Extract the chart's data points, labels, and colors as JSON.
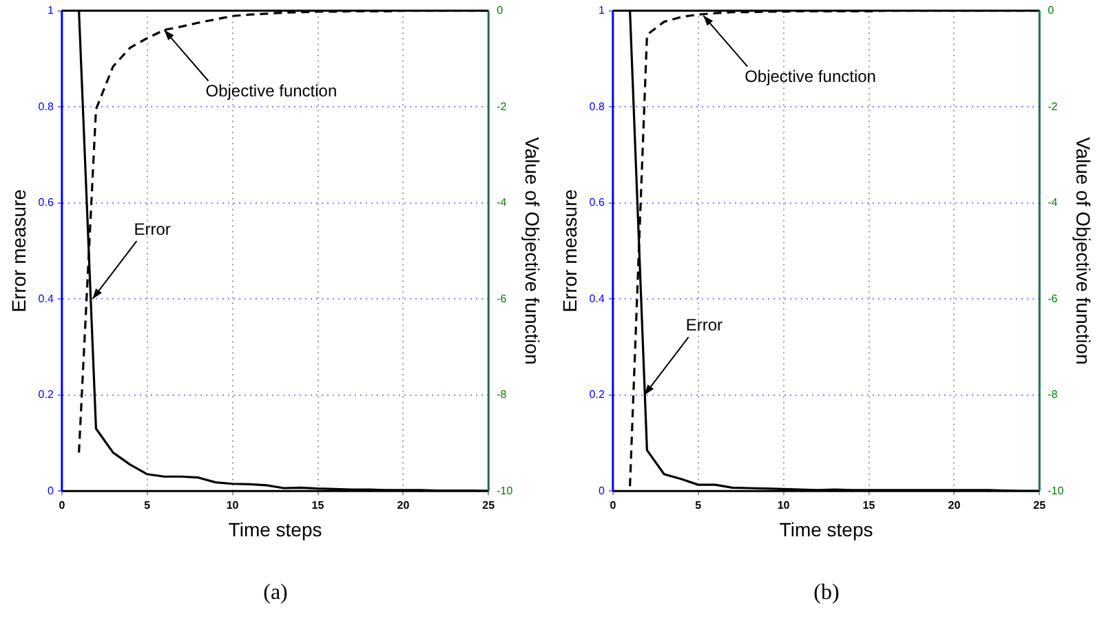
{
  "chart_data": [
    {
      "type": "line",
      "xlabel": "Time steps",
      "ylabel": "Error measure",
      "y2label": "Value of Objective function",
      "xlim": [
        0,
        25
      ],
      "xticks": [
        0,
        5,
        10,
        15,
        20,
        25
      ],
      "ylim": [
        0,
        1
      ],
      "yticks": [
        0,
        0.2,
        0.4,
        0.6,
        0.8,
        1
      ],
      "y2lim": [
        -10,
        0
      ],
      "y2ticks": [
        -10,
        -8,
        -6,
        -4,
        -2,
        0
      ],
      "grid": true,
      "legend": false,
      "x": [
        1,
        2,
        3,
        4,
        5,
        6,
        7,
        8,
        9,
        10,
        11,
        12,
        13,
        14,
        15,
        16,
        17,
        18,
        19,
        20,
        21,
        22,
        23,
        24,
        25
      ],
      "series": [
        {
          "color": "#000000",
          "line_style": "solid",
          "values": [
            1,
            0.13,
            0.08,
            0.055,
            0.035,
            0.03,
            0.03,
            0.028,
            0.018,
            0.015,
            0.014,
            0.012,
            0.006,
            0.007,
            0.005,
            0.004,
            0.003,
            0.003,
            0.002,
            0.002,
            0.002,
            0.001,
            0.001,
            0.001,
            0
          ]
        },
        {
          "color": "#000000",
          "line_style": "dashed",
          "axis": "y2",
          "values": [
            -9.2,
            -2.05,
            -1.16,
            -0.77,
            -0.57,
            -0.4,
            -0.33,
            -0.25,
            -0.18,
            -0.11,
            -0.08,
            -0.06,
            -0.04,
            -0.03,
            -0.02,
            -0.02,
            -0.01,
            -0.01,
            -0.01,
            0,
            0,
            0,
            0,
            0,
            0
          ]
        }
      ],
      "annotations": [
        {
          "text": "Error",
          "x": 1.8,
          "y": 0.4
        },
        {
          "text": "Objective function",
          "x": 6,
          "y": 0.96
        },
        "(a)"
      ]
    },
    {
      "type": "line",
      "xlabel": "Time steps",
      "ylabel": "Error measure",
      "y2label": "Value of Objective function",
      "xlim": [
        0,
        25
      ],
      "xticks": [
        0,
        5,
        10,
        15,
        20,
        25
      ],
      "ylim": [
        0,
        1
      ],
      "yticks": [
        0,
        0.2,
        0.4,
        0.6,
        0.8,
        1
      ],
      "y2lim": [
        -10,
        0
      ],
      "y2ticks": [
        -10,
        -8,
        -6,
        -4,
        -2,
        0
      ],
      "grid": true,
      "legend": false,
      "x": [
        1,
        2,
        3,
        4,
        5,
        6,
        7,
        8,
        9,
        10,
        11,
        12,
        13,
        14,
        15,
        16,
        17,
        18,
        19,
        20,
        21,
        22,
        23,
        24,
        25
      ],
      "series": [
        {
          "color": "#000000",
          "line_style": "solid",
          "values": [
            1,
            0.085,
            0.035,
            0.025,
            0.013,
            0.013,
            0.007,
            0.006,
            0.005,
            0.004,
            0.003,
            0.002,
            0.003,
            0.002,
            0.002,
            0.002,
            0.002,
            0.002,
            0.002,
            0.002,
            0.002,
            0.002,
            0.001,
            0,
            0
          ]
        },
        {
          "color": "#000000",
          "line_style": "dashed",
          "axis": "y2",
          "values": [
            -9.9,
            -0.5,
            -0.23,
            -0.13,
            -0.08,
            -0.05,
            -0.03,
            -0.03,
            -0.02,
            -0.02,
            -0.01,
            -0.01,
            -0.01,
            -0.01,
            -0.01,
            0,
            0,
            0,
            0,
            0,
            0,
            0,
            0,
            0,
            0
          ]
        }
      ],
      "annotations": [
        {
          "text": "Error",
          "x": 1.85,
          "y": 0.2
        },
        {
          "text": "Objective function",
          "x": 5.3,
          "y": 0.99
        },
        "(b)"
      ]
    }
  ]
}
